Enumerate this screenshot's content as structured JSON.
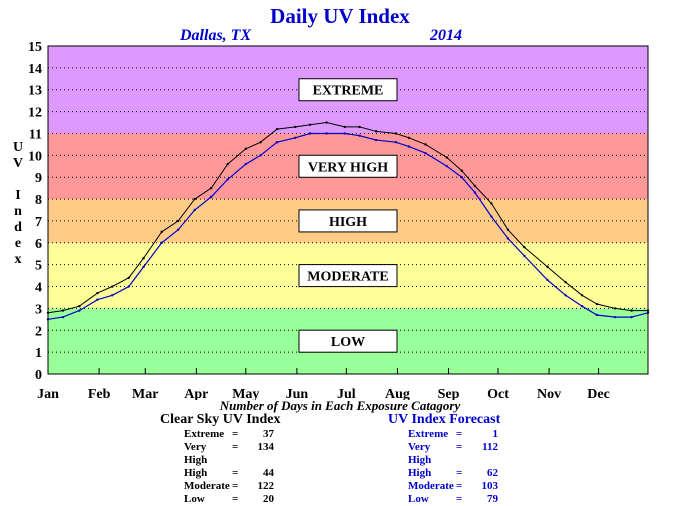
{
  "chart_data": {
    "type": "line",
    "title": "Daily UV Index",
    "location": "Dallas, TX",
    "year": "2014",
    "ylabel": "UV Index",
    "ylim": [
      0,
      15
    ],
    "yticks": [
      0,
      1,
      2,
      3,
      4,
      5,
      6,
      7,
      8,
      9,
      10,
      11,
      12,
      13,
      14,
      15
    ],
    "months": [
      "Jan",
      "Feb",
      "Mar",
      "Apr",
      "May",
      "Jun",
      "Jul",
      "Aug",
      "Sep",
      "Oct",
      "Nov",
      "Dec"
    ],
    "grid": true,
    "bands": [
      {
        "label": "LOW",
        "from": 0,
        "to": 3,
        "color": "#99ff99"
      },
      {
        "label": "MODERATE",
        "from": 3,
        "to": 6,
        "color": "#ffff99"
      },
      {
        "label": "HIGH",
        "from": 6,
        "to": 8,
        "color": "#ffcc88"
      },
      {
        "label": "VERY HIGH",
        "from": 8,
        "to": 11,
        "color": "#ff9999"
      },
      {
        "label": "EXTREME",
        "from": 11,
        "to": 15,
        "color": "#dd99ff"
      }
    ],
    "series": [
      {
        "name": "Clear Sky UV Index",
        "color": "#000000",
        "x": [
          1,
          10,
          20,
          31,
          40,
          50,
          59,
          70,
          80,
          90,
          100,
          110,
          121,
          130,
          140,
          151,
          160,
          170,
          181,
          190,
          200,
          212,
          220,
          230,
          243,
          252,
          260,
          270,
          280,
          290,
          304,
          315,
          325,
          334,
          345,
          355,
          365
        ],
        "y": [
          2.8,
          2.9,
          3.1,
          3.7,
          4.0,
          4.4,
          5.3,
          6.5,
          7.0,
          8.0,
          8.5,
          9.6,
          10.3,
          10.6,
          11.2,
          11.3,
          11.4,
          11.5,
          11.3,
          11.3,
          11.1,
          11.0,
          10.8,
          10.5,
          9.9,
          9.3,
          8.6,
          7.8,
          6.6,
          5.8,
          4.9,
          4.2,
          3.6,
          3.2,
          3.0,
          2.9,
          2.9
        ]
      },
      {
        "name": "UV Index Forecast",
        "color": "#0000cc",
        "x": [
          1,
          10,
          20,
          31,
          40,
          50,
          59,
          70,
          80,
          90,
          100,
          110,
          121,
          130,
          140,
          151,
          160,
          170,
          181,
          190,
          200,
          212,
          220,
          230,
          243,
          252,
          260,
          270,
          280,
          290,
          304,
          315,
          325,
          334,
          345,
          355,
          365
        ],
        "y": [
          2.5,
          2.6,
          2.9,
          3.4,
          3.6,
          4.0,
          4.9,
          6.0,
          6.6,
          7.5,
          8.1,
          8.9,
          9.6,
          10.0,
          10.6,
          10.8,
          11.0,
          11.0,
          11.0,
          10.9,
          10.7,
          10.6,
          10.4,
          10.1,
          9.5,
          9.0,
          8.3,
          7.2,
          6.2,
          5.4,
          4.3,
          3.6,
          3.1,
          2.7,
          2.6,
          2.6,
          2.8
        ]
      }
    ]
  },
  "caption": "Number of Days in Each Exposure Catagory",
  "clear_sky": {
    "header": "Clear Sky UV Index",
    "rows": [
      {
        "name": "Extreme",
        "eq": "=",
        "value": "37"
      },
      {
        "name": "Very High",
        "eq": "=",
        "value": "134"
      },
      {
        "name": "High",
        "eq": "=",
        "value": "44"
      },
      {
        "name": "Moderate",
        "eq": "=",
        "value": "122"
      },
      {
        "name": "Low",
        "eq": "=",
        "value": "20"
      }
    ]
  },
  "forecast": {
    "header": "UV Index Forecast",
    "rows": [
      {
        "name": "Extreme",
        "eq": "=",
        "value": "1"
      },
      {
        "name": "Very High",
        "eq": "=",
        "value": "112"
      },
      {
        "name": "High",
        "eq": "=",
        "value": "62"
      },
      {
        "name": "Moderate",
        "eq": "=",
        "value": "103"
      },
      {
        "name": "Low",
        "eq": "=",
        "value": "79"
      }
    ]
  }
}
